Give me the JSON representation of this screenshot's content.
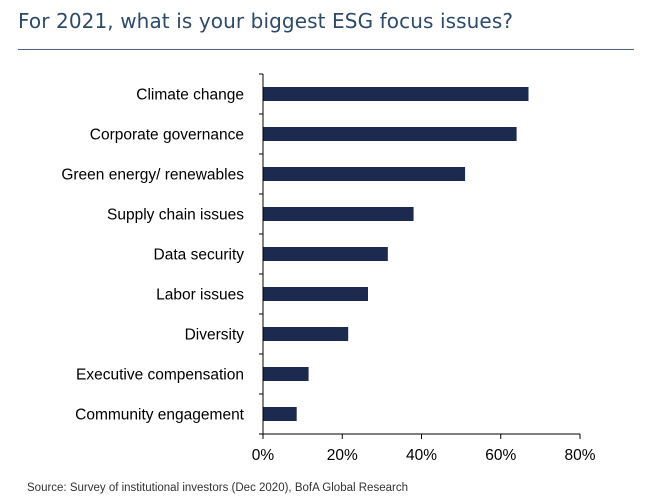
{
  "title": "For 2021, what is your biggest ESG focus issues?",
  "source": "Source: Survey of institutional investors (Dec 2020), BofA Global Research",
  "colors": {
    "bar": "#1b2a4e",
    "title": "#2d4a6b",
    "rule": "#4a6283",
    "axis": "#000000"
  },
  "chart_data": {
    "type": "bar",
    "orientation": "horizontal",
    "categories": [
      "Climate change",
      "Corporate governance",
      "Green energy/ renewables",
      "Supply chain issues",
      "Data security",
      "Labor issues",
      "Diversity",
      "Executive compensation",
      "Community engagement"
    ],
    "values": [
      67,
      64,
      51,
      38,
      31.5,
      26.5,
      21.5,
      11.5,
      8.5
    ],
    "value_unit": "%",
    "xlim": [
      0,
      80
    ],
    "xticks": [
      "0%",
      "20%",
      "40%",
      "60%",
      "80%"
    ],
    "xtick_values": [
      0,
      20,
      40,
      60,
      80
    ],
    "title": "For 2021, what is your biggest ESG focus issues?",
    "xlabel": "",
    "ylabel": "",
    "grid": false,
    "legend": "none"
  }
}
